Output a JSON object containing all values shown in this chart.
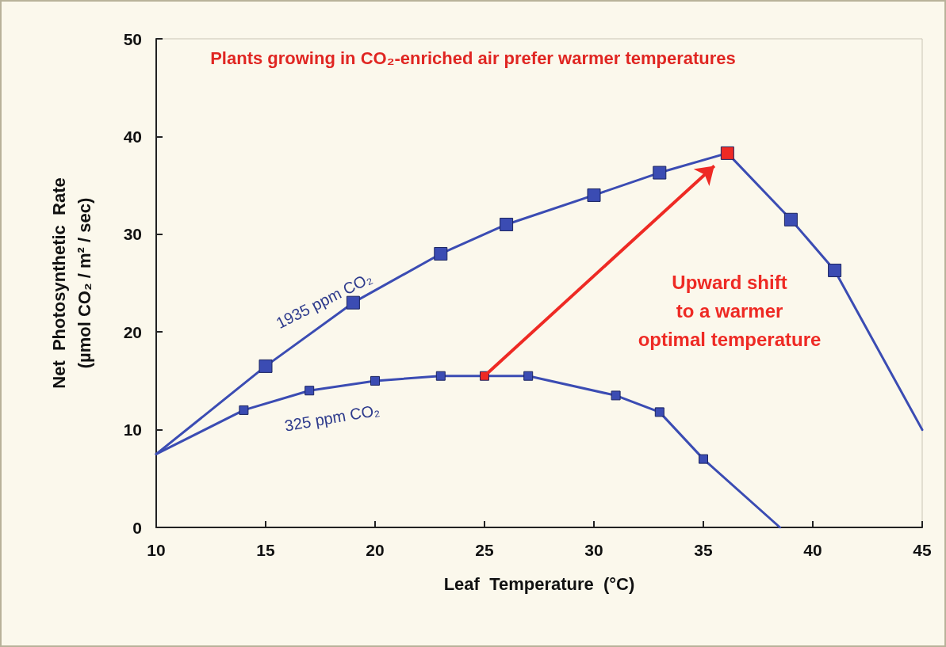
{
  "chart_data": {
    "type": "line",
    "xlabel": "Leaf  Temperature  (°C)",
    "ylabel": "Net  Photosynthetic  Rate\n(µmol CO₂ / m² / sec)",
    "annotations": [
      "Plants growing in CO₂-enriched air prefer warmer temperatures",
      "Upward shift\nto a warmer\noptimal temperature"
    ],
    "series": [
      {
        "name": "1935 ppm CO₂",
        "color": "#3b4cb3",
        "x": [
          10,
          15,
          19,
          23,
          26,
          30,
          33,
          36.1,
          39,
          41,
          45
        ],
        "values": [
          7.5,
          16.5,
          23,
          28,
          31,
          34,
          36.3,
          38.3,
          31.5,
          26.3,
          10
        ],
        "colors": [
          null,
          "#3b4cb3",
          "#3b4cb3",
          "#3b4cb3",
          "#3b4cb3",
          "#3b4cb3",
          "#3b4cb3",
          "#ee2a24",
          "#3b4cb3",
          "#3b4cb3",
          null
        ]
      },
      {
        "name": "325 ppm CO₂",
        "color": "#3b4cb3",
        "x": [
          10,
          14,
          17,
          20,
          23,
          25,
          27,
          31,
          33,
          35,
          38.5
        ],
        "values": [
          7.5,
          12,
          14,
          15,
          15.5,
          15.5,
          15.5,
          13.5,
          11.8,
          7,
          0
        ],
        "colors": [
          null,
          "#3b4cb3",
          "#3b4cb3",
          "#3b4cb3",
          "#3b4cb3",
          "#ee2a24",
          "#3b4cb3",
          "#3b4cb3",
          "#3b4cb3",
          "#3b4cb3",
          null
        ]
      }
    ],
    "xlim": [
      10,
      45
    ],
    "xticks": [
      10,
      15,
      20,
      25,
      30,
      35,
      40,
      45
    ],
    "ylim": [
      0,
      50
    ],
    "yticks": [
      0,
      10,
      20,
      30,
      40,
      50
    ],
    "grid": false,
    "legend": false,
    "marker": "square",
    "line_style": "solid"
  }
}
